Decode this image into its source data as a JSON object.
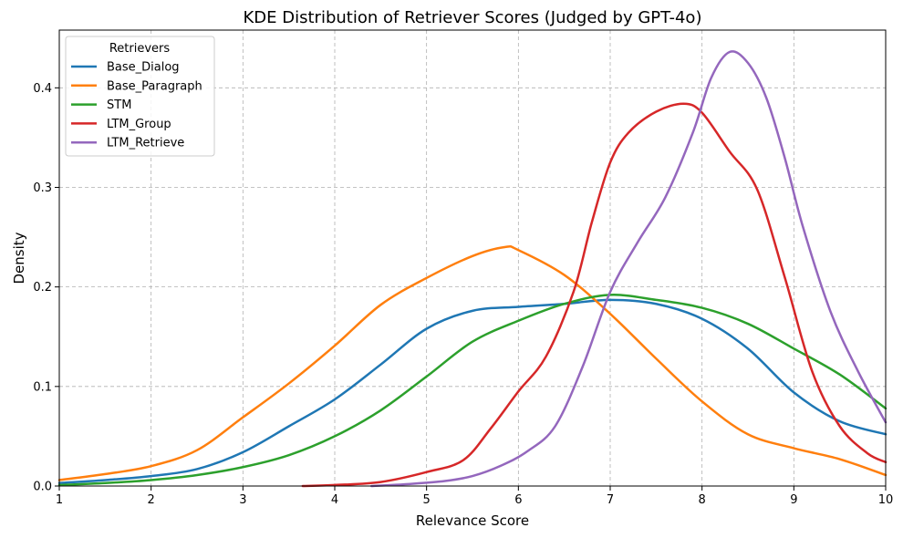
{
  "chart_data": {
    "type": "line",
    "title": "KDE Distribution of Retriever Scores (Judged by GPT-4o)",
    "xlabel": "Relevance Score",
    "ylabel": "Density",
    "xlim": [
      1,
      10
    ],
    "ylim": [
      0,
      0.458
    ],
    "xticks": [
      "1",
      "2",
      "3",
      "4",
      "5",
      "6",
      "7",
      "8",
      "9",
      "10"
    ],
    "yticks": [
      "0.0",
      "0.1",
      "0.2",
      "0.3",
      "0.4"
    ],
    "grid": true,
    "legend": {
      "title": "Retrievers",
      "placement": "top-left"
    },
    "series": [
      {
        "name": "Base_Dialog",
        "color": "#1f77b4",
        "x": [
          1,
          1.5,
          2,
          2.5,
          3,
          3.5,
          4,
          4.5,
          5,
          5.5,
          6,
          6.5,
          7,
          7.5,
          8,
          8.5,
          9,
          9.5,
          10
        ],
        "y": [
          0.003,
          0.006,
          0.01,
          0.017,
          0.034,
          0.06,
          0.087,
          0.122,
          0.158,
          0.176,
          0.18,
          0.183,
          0.187,
          0.183,
          0.168,
          0.138,
          0.094,
          0.065,
          0.052
        ]
      },
      {
        "name": "Base_Paragraph",
        "color": "#ff7f0e",
        "x": [
          1,
          1.5,
          2,
          2.5,
          3,
          3.5,
          4,
          4.5,
          5,
          5.5,
          5.85,
          6,
          6.5,
          7,
          7.5,
          8,
          8.5,
          9,
          9.5,
          10
        ],
        "y": [
          0.006,
          0.012,
          0.02,
          0.036,
          0.069,
          0.103,
          0.141,
          0.182,
          0.209,
          0.231,
          0.24,
          0.237,
          0.212,
          0.173,
          0.128,
          0.085,
          0.052,
          0.038,
          0.027,
          0.011
        ]
      },
      {
        "name": "STM",
        "color": "#2ca02c",
        "x": [
          1,
          1.5,
          2,
          2.5,
          3,
          3.5,
          4,
          4.5,
          5,
          5.5,
          6,
          6.5,
          7,
          7.5,
          8,
          8.5,
          9,
          9.5,
          10
        ],
        "y": [
          0.001,
          0.003,
          0.006,
          0.011,
          0.019,
          0.031,
          0.05,
          0.076,
          0.11,
          0.145,
          0.166,
          0.183,
          0.192,
          0.187,
          0.179,
          0.163,
          0.138,
          0.112,
          0.078
        ]
      },
      {
        "name": "LTM_Group",
        "color": "#d62728",
        "x": [
          3.65,
          4,
          4.5,
          5,
          5.4,
          5.7,
          6,
          6.3,
          6.6,
          6.8,
          7,
          7.2,
          7.5,
          7.8,
          8,
          8.3,
          8.6,
          8.9,
          9.2,
          9.5,
          9.8,
          10
        ],
        "y": [
          0.0,
          0.001,
          0.004,
          0.014,
          0.026,
          0.058,
          0.095,
          0.13,
          0.195,
          0.265,
          0.325,
          0.355,
          0.376,
          0.384,
          0.375,
          0.336,
          0.298,
          0.21,
          0.115,
          0.06,
          0.033,
          0.024
        ]
      },
      {
        "name": "LTM_Retrieve",
        "color": "#9467bd",
        "x": [
          4.4,
          4.8,
          5.2,
          5.5,
          5.8,
          6.1,
          6.4,
          6.7,
          7,
          7.3,
          7.6,
          7.9,
          8.1,
          8.3,
          8.5,
          8.7,
          8.9,
          9.1,
          9.4,
          9.7,
          10
        ],
        "y": [
          0.0,
          0.002,
          0.005,
          0.01,
          0.02,
          0.035,
          0.06,
          0.12,
          0.195,
          0.245,
          0.29,
          0.355,
          0.41,
          0.436,
          0.425,
          0.39,
          0.33,
          0.26,
          0.175,
          0.115,
          0.064
        ]
      }
    ]
  }
}
